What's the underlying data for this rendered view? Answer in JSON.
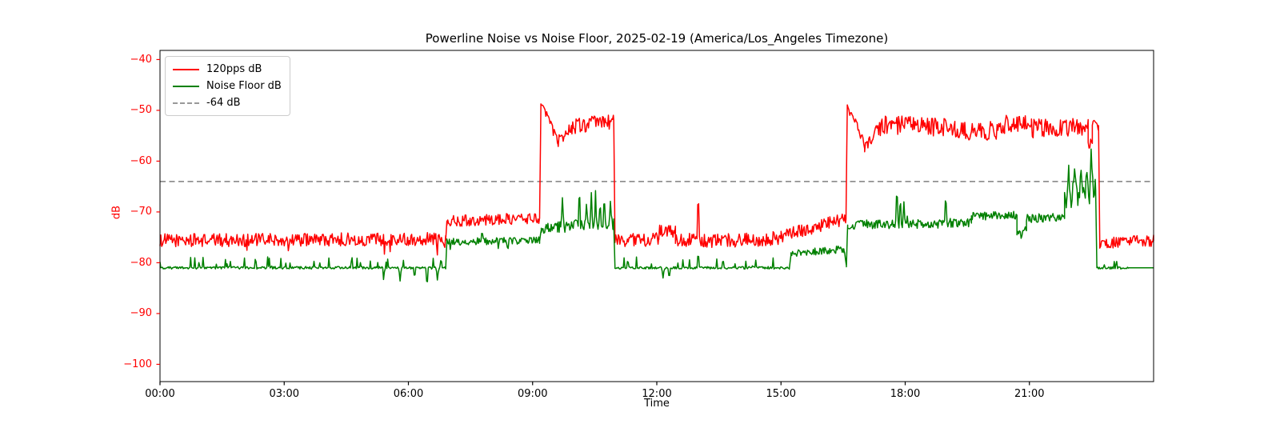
{
  "figure": {
    "title": "Powerline Noise vs Noise Floor, 2025-02-19 (America/Los_Angeles Timezone)"
  },
  "chart_data": {
    "type": "line",
    "title": "Powerline Noise vs Noise Floor, 2025-02-19 (America/Los_Angeles Timezone)",
    "xlabel": "Time",
    "ylabel": "dB",
    "x_range_hours": [
      0,
      24
    ],
    "y_range": [
      -103.4,
      -38.2
    ],
    "grid": false,
    "legend_position": "upper-left",
    "axis_colors": {
      "y_tick": "#ff0000",
      "x_tick": "#000000",
      "frame": "#000000"
    },
    "x_ticks": [
      {
        "hour": 0,
        "label": "00:00"
      },
      {
        "hour": 3,
        "label": "03:00"
      },
      {
        "hour": 6,
        "label": "06:00"
      },
      {
        "hour": 9,
        "label": "09:00"
      },
      {
        "hour": 12,
        "label": "12:00"
      },
      {
        "hour": 15,
        "label": "15:00"
      },
      {
        "hour": 18,
        "label": "18:00"
      },
      {
        "hour": 21,
        "label": "21:00"
      }
    ],
    "y_ticks": [
      {
        "value": -40,
        "label": "−40"
      },
      {
        "value": -50,
        "label": "−50"
      },
      {
        "value": -60,
        "label": "−60"
      },
      {
        "value": -70,
        "label": "−70"
      },
      {
        "value": -80,
        "label": "−80"
      },
      {
        "value": -90,
        "label": "−90"
      },
      {
        "value": -100,
        "label": "−100"
      }
    ],
    "threshold": {
      "value": -64,
      "label": "-64 dB",
      "color": "#7f7f7f",
      "style": "dashed"
    },
    "legend": [
      {
        "label": "120pps dB",
        "color": "#ff0000",
        "dash": false
      },
      {
        "label": "Noise Floor dB",
        "color": "#008000",
        "dash": false
      },
      {
        "label": "-64 dB",
        "color": "#999999",
        "dash": true
      }
    ],
    "series": [
      {
        "name": "120pps dB",
        "color": "#ff0000",
        "summary": "≈ -75.5 dB 00:00-06:55, step to ≈ -71 until 09:10, burst ≈ -52 dB 09:11-10:58, back to ≈ -75.5 with spike -65 at 13:00, ramp -75→-71 15:00-16:35, burst ≈ -53 dB 16:36-22:41 (peaks -49.5), tail ≈ -76 until 24:00",
        "segments": [
          {
            "t": [
              0.0,
              6.9
            ],
            "v": [
              -75.6,
              -75.3
            ],
            "n": 1.3,
            "bp": 0.05,
            "ba": -2.5
          },
          {
            "t": [
              6.9,
              6.93
            ],
            "v": [
              -75.3,
              -71.8
            ],
            "n": 0.3
          },
          {
            "t": [
              6.93,
              9.17
            ],
            "v": [
              -71.8,
              -71.2
            ],
            "n": 1.1
          },
          {
            "t": [
              9.17,
              9.2
            ],
            "v": [
              -71.2,
              -49.3
            ],
            "n": 0.3
          },
          {
            "t": [
              9.2,
              9.34
            ],
            "v": [
              -49.3,
              -50.6
            ],
            "n": 0.8
          },
          {
            "t": [
              9.34,
              9.6
            ],
            "v": [
              -50.6,
              -56.2
            ],
            "n": 0.9
          },
          {
            "t": [
              9.6,
              9.95
            ],
            "v": [
              -56.2,
              -53.2
            ],
            "n": 1.1
          },
          {
            "t": [
              9.95,
              10.96
            ],
            "v": [
              -53.2,
              -52.0
            ],
            "n": 1.6
          },
          {
            "t": [
              10.96,
              10.99
            ],
            "v": [
              -52.0,
              -75.2
            ],
            "n": 0.3
          },
          {
            "t": [
              10.99,
              12.05
            ],
            "v": [
              -75.5,
              -75.4
            ],
            "n": 1.4
          },
          {
            "t": [
              12.05,
              12.45
            ],
            "v": [
              -73.8,
              -73.9
            ],
            "n": 1.2
          },
          {
            "t": [
              12.45,
              12.99
            ],
            "v": [
              -75.5,
              -75.5
            ],
            "n": 1.3
          },
          {
            "t": [
              12.99,
              15.0
            ],
            "v": [
              -75.8,
              -75.2
            ],
            "n": 1.4
          },
          {
            "t": [
              15.0,
              16.57
            ],
            "v": [
              -74.8,
              -71.4
            ],
            "n": 1.3
          },
          {
            "t": [
              16.57,
              16.6
            ],
            "v": [
              -71.4,
              -49.6
            ],
            "n": 0.3
          },
          {
            "t": [
              16.6,
              16.74
            ],
            "v": [
              -49.6,
              -51.2
            ],
            "n": 0.8
          },
          {
            "t": [
              16.74,
              17.02
            ],
            "v": [
              -51.2,
              -57.0
            ],
            "n": 1.0
          },
          {
            "t": [
              17.02,
              17.4
            ],
            "v": [
              -57.0,
              -53.2
            ],
            "n": 1.4
          },
          {
            "t": [
              17.4,
              19.2
            ],
            "v": [
              -53.0,
              -53.4
            ],
            "n": 2.0
          },
          {
            "t": [
              19.2,
              20.4
            ],
            "v": [
              -54.3,
              -54.0
            ],
            "n": 1.9
          },
          {
            "t": [
              20.4,
              21.05
            ],
            "v": [
              -52.5,
              -52.8
            ],
            "n": 1.7
          },
          {
            "t": [
              21.05,
              22.3
            ],
            "v": [
              -53.6,
              -53.2
            ],
            "n": 1.9
          },
          {
            "t": [
              22.3,
              22.42
            ],
            "v": [
              -53.0,
              -53.0
            ],
            "n": 1.3
          },
          {
            "t": [
              22.42,
              22.52
            ],
            "v": [
              -56.8,
              -56.5
            ],
            "n": 1.0
          },
          {
            "t": [
              22.52,
              22.67
            ],
            "v": [
              -52.8,
              -53.0
            ],
            "n": 1.1
          },
          {
            "t": [
              22.67,
              22.7
            ],
            "v": [
              -53.0,
              -76.0
            ],
            "n": 0.3
          },
          {
            "t": [
              22.7,
              24.0
            ],
            "v": [
              -76.2,
              -75.7
            ],
            "n": 1.2
          }
        ],
        "spikes": [
          {
            "t": 9.23,
            "v": -49.0
          },
          {
            "t": 13.0,
            "v": -65.2
          },
          {
            "t": 16.63,
            "v": -49.5
          },
          {
            "t": 20.75,
            "v": -49.9
          },
          {
            "t": 22.55,
            "v": -51.5
          }
        ]
      },
      {
        "name": "Noise Floor dB",
        "color": "#008000",
        "summary": "flat ≈ -81 dB 00:00-06:55 with small blips, step to ≈ -75.7 until 09:10, ≈ -72.7 with spikes to -64.4 during 09:11-10:58, back to -81 until 15:12, step to ≈ -78, jump to ≈ -72.4 at 16:36 with spikes (-64.3 at 17:48, -66 at 19:00), ≈ -71 after 19:40, surge oscillating -61…-72 21:50-22:35 (max -57.6), flat -81 tail",
        "segments": [
          {
            "t": [
              0.0,
              6.9
            ],
            "v": [
              -81.0,
              -81.0
            ],
            "n": 0.25,
            "bp": 0.1,
            "ba": 2.2
          },
          {
            "t": [
              6.9,
              6.93
            ],
            "v": [
              -81.0,
              -75.9
            ],
            "n": 0.3
          },
          {
            "t": [
              6.93,
              9.17
            ],
            "v": [
              -75.9,
              -75.6
            ],
            "n": 0.7,
            "bp": 0.05,
            "ba": -1.5
          },
          {
            "t": [
              9.17,
              9.21
            ],
            "v": [
              -75.6,
              -73.2
            ],
            "n": 0.4
          },
          {
            "t": [
              9.21,
              9.6
            ],
            "v": [
              -73.2,
              -73.0
            ],
            "n": 1.0
          },
          {
            "t": [
              9.6,
              10.96
            ],
            "v": [
              -72.9,
              -72.5
            ],
            "n": 1.2,
            "bp": 0.06,
            "ba": 3.0
          },
          {
            "t": [
              10.96,
              10.99
            ],
            "v": [
              -72.5,
              -80.8
            ],
            "n": 0.3
          },
          {
            "t": [
              10.99,
              15.2
            ],
            "v": [
              -81.0,
              -81.0
            ],
            "n": 0.25,
            "bp": 0.08,
            "ba": 2.0
          },
          {
            "t": [
              15.2,
              15.24
            ],
            "v": [
              -81.0,
              -78.3
            ],
            "n": 0.3
          },
          {
            "t": [
              15.24,
              16.52
            ],
            "v": [
              -78.2,
              -77.3
            ],
            "n": 0.7
          },
          {
            "t": [
              16.52,
              16.58
            ],
            "v": [
              -77.3,
              -80.6
            ],
            "n": 0.3
          },
          {
            "t": [
              16.58,
              16.61
            ],
            "v": [
              -80.6,
              -72.6
            ],
            "n": 0.3
          },
          {
            "t": [
              16.61,
              19.6
            ],
            "v": [
              -72.6,
              -72.2
            ],
            "n": 0.9,
            "bp": 0.05,
            "ba": 2.0
          },
          {
            "t": [
              19.6,
              20.7
            ],
            "v": [
              -70.9,
              -70.6
            ],
            "n": 0.8
          },
          {
            "t": [
              20.7,
              20.93
            ],
            "v": [
              -73.7,
              -73.7
            ],
            "n": 0.8
          },
          {
            "t": [
              20.93,
              21.85
            ],
            "v": [
              -71.3,
              -71.0
            ],
            "n": 0.9
          },
          {
            "t": [
              21.85,
              22.6
            ],
            "v": [
              -66.8,
              -65.8
            ],
            "n": 3.0
          },
          {
            "t": [
              22.6,
              22.63
            ],
            "v": [
              -65.8,
              -81.0
            ],
            "n": 0.3
          },
          {
            "t": [
              22.63,
              23.4
            ],
            "v": [
              -81.0,
              -81.0
            ],
            "n": 0.25,
            "bp": 0.12,
            "ba": 1.6
          },
          {
            "t": [
              23.4,
              24.0
            ],
            "v": [
              -81.0,
              -81.0
            ],
            "n": 0.0
          }
        ],
        "spikes": [
          {
            "t": 5.4,
            "v": -83.3
          },
          {
            "t": 5.8,
            "v": -83.6
          },
          {
            "t": 6.15,
            "v": -83.2
          },
          {
            "t": 6.45,
            "v": -85.0
          },
          {
            "t": 6.7,
            "v": -83.4
          },
          {
            "t": 7.78,
            "v": -73.4
          },
          {
            "t": 8.4,
            "v": -77.9
          },
          {
            "t": 9.72,
            "v": -67.2
          },
          {
            "t": 10.13,
            "v": -64.4
          },
          {
            "t": 10.3,
            "v": -68.5
          },
          {
            "t": 10.42,
            "v": -66.2
          },
          {
            "t": 10.52,
            "v": -65.8
          },
          {
            "t": 10.63,
            "v": -67.8
          },
          {
            "t": 10.73,
            "v": -66.4
          },
          {
            "t": 10.88,
            "v": -67.9
          },
          {
            "t": 11.3,
            "v": -79.2
          },
          {
            "t": 12.15,
            "v": -83.0
          },
          {
            "t": 12.3,
            "v": -83.2
          },
          {
            "t": 13.0,
            "v": -77.6
          },
          {
            "t": 13.6,
            "v": -79.2
          },
          {
            "t": 17.8,
            "v": -64.3
          },
          {
            "t": 17.88,
            "v": -66.8
          },
          {
            "t": 17.97,
            "v": -68.0
          },
          {
            "t": 18.98,
            "v": -66.0
          },
          {
            "t": 20.8,
            "v": -75.2
          },
          {
            "t": 21.95,
            "v": -60.8
          },
          {
            "t": 22.1,
            "v": -60.5
          },
          {
            "t": 22.25,
            "v": -61.8
          },
          {
            "t": 22.38,
            "v": -60.9
          },
          {
            "t": 22.49,
            "v": -57.6
          }
        ]
      }
    ]
  }
}
